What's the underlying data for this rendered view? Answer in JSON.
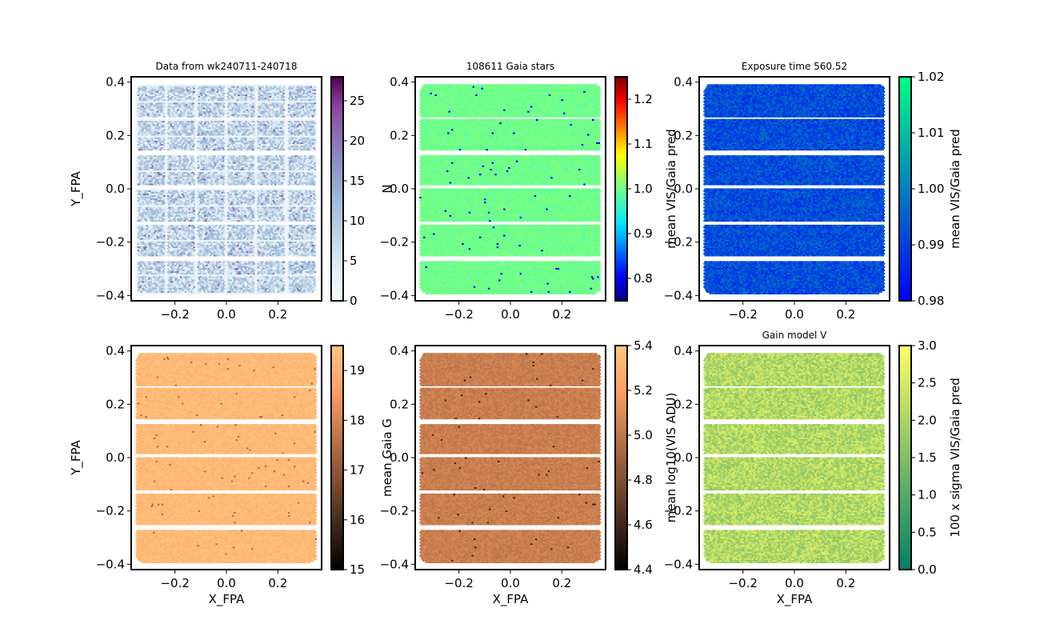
{
  "chart_data": [
    {
      "type": "heatmap",
      "title": "Data from wk240711-240718",
      "xlabel": "",
      "ylabel": "Y_FPA",
      "xlim": [
        -0.37,
        0.37
      ],
      "ylim": [
        -0.42,
        0.42
      ],
      "xticks": [
        -0.2,
        0.0,
        0.2
      ],
      "yticks": [
        -0.4,
        -0.2,
        0.0,
        0.2,
        0.4
      ],
      "xtick_labels": [
        "−0.2",
        "0.0",
        "0.2"
      ],
      "ytick_labels": [
        "−0.4",
        "−0.2",
        "0.0",
        "0.2",
        "0.4"
      ],
      "show_xtick_labels": true,
      "colorbar": {
        "label": "N",
        "range": [
          0,
          28
        ],
        "colormap": "BuPu",
        "ticks": [
          0,
          5,
          10,
          15,
          20,
          25
        ],
        "tick_labels": [
          "0",
          "5",
          "10",
          "15",
          "20",
          "25"
        ]
      },
      "field_pattern": "dense_grid",
      "value_stats": {
        "typical": 8,
        "spread": 6,
        "high_tail": 22
      }
    },
    {
      "type": "heatmap",
      "title": "108611 Gaia stars",
      "xlabel": "",
      "ylabel": "",
      "xlim": [
        -0.37,
        0.37
      ],
      "ylim": [
        -0.42,
        0.42
      ],
      "xticks": [
        -0.2,
        0.0,
        0.2
      ],
      "yticks": [
        -0.4,
        -0.2,
        0.0,
        0.2,
        0.4
      ],
      "xtick_labels": [
        "−0.2",
        "0.0",
        "0.2"
      ],
      "ytick_labels": [
        "−0.4",
        "−0.2",
        "0.0",
        "0.2",
        "0.4"
      ],
      "colorbar": {
        "label": "mean VIS/Gaia pred",
        "range": [
          0.75,
          1.25
        ],
        "colormap": "jet",
        "ticks": [
          0.8,
          0.9,
          1.0,
          1.1,
          1.2
        ],
        "tick_labels": [
          "0.8",
          "0.9",
          "1.0",
          "1.1",
          "1.2"
        ]
      },
      "field_pattern": "rows",
      "value_stats": {
        "typical": 1.0,
        "spread": 0.01,
        "outlier_low": 0.8
      }
    },
    {
      "type": "heatmap",
      "title": "Exposure time 560.52",
      "xlabel": "",
      "ylabel": "",
      "xlim": [
        -0.37,
        0.37
      ],
      "ylim": [
        -0.42,
        0.42
      ],
      "xticks": [
        -0.2,
        0.0,
        0.2
      ],
      "yticks": [
        -0.4,
        -0.2,
        0.0,
        0.2,
        0.4
      ],
      "xtick_labels": [
        "−0.2",
        "0.0",
        "0.2"
      ],
      "ytick_labels": [
        "−0.4",
        "−0.2",
        "0.0",
        "0.2",
        "0.4"
      ],
      "colorbar": {
        "label": "mean VIS/Gaia pred",
        "range": [
          0.98,
          1.02
        ],
        "colormap": "winter",
        "ticks": [
          0.98,
          0.99,
          1.0,
          1.01,
          1.02
        ],
        "tick_labels": [
          "0.98",
          "0.99",
          "1.00",
          "1.01",
          "1.02"
        ]
      },
      "field_pattern": "rows",
      "value_stats": {
        "typical": 0.992,
        "spread": 0.006
      }
    },
    {
      "type": "heatmap",
      "title": "",
      "xlabel": "X_FPA",
      "ylabel": "Y_FPA",
      "xlim": [
        -0.37,
        0.37
      ],
      "ylim": [
        -0.42,
        0.42
      ],
      "xticks": [
        -0.2,
        0.0,
        0.2
      ],
      "yticks": [
        -0.4,
        -0.2,
        0.0,
        0.2,
        0.4
      ],
      "xtick_labels": [
        "−0.2",
        "0.0",
        "0.2"
      ],
      "ytick_labels": [
        "−0.4",
        "−0.2",
        "0.0",
        "0.2",
        "0.4"
      ],
      "colorbar": {
        "label": "mean Gaia G",
        "range": [
          15,
          19.5
        ],
        "colormap": "copper",
        "ticks": [
          15,
          16,
          17,
          18,
          19
        ],
        "tick_labels": [
          "15",
          "16",
          "17",
          "18",
          "19"
        ]
      },
      "field_pattern": "rows",
      "value_stats": {
        "typical": 19.2,
        "spread": 0.2,
        "outlier_low": 17.5
      }
    },
    {
      "type": "heatmap",
      "title": "",
      "xlabel": "X_FPA",
      "ylabel": "",
      "xlim": [
        -0.37,
        0.37
      ],
      "ylim": [
        -0.42,
        0.42
      ],
      "xticks": [
        -0.2,
        0.0,
        0.2
      ],
      "yticks": [
        -0.4,
        -0.2,
        0.0,
        0.2,
        0.4
      ],
      "xtick_labels": [
        "−0.2",
        "0.0",
        "0.2"
      ],
      "ytick_labels": [
        "−0.4",
        "−0.2",
        "0.0",
        "0.2",
        "0.4"
      ],
      "colorbar": {
        "label": "mean log10(VIS ADU)",
        "range": [
          4.4,
          5.4
        ],
        "colormap": "copper",
        "ticks": [
          4.4,
          4.6,
          4.8,
          5.0,
          5.2,
          5.4
        ],
        "tick_labels": [
          "4.4",
          "4.6",
          "4.8",
          "5.0",
          "5.2",
          "5.4"
        ]
      },
      "field_pattern": "rows",
      "value_stats": {
        "typical": 5.03,
        "spread": 0.05,
        "outlier_low": 4.6
      }
    },
    {
      "type": "heatmap",
      "title": "Gain model V",
      "xlabel": "X_FPA",
      "ylabel": "",
      "xlim": [
        -0.37,
        0.37
      ],
      "ylim": [
        -0.42,
        0.42
      ],
      "xticks": [
        -0.2,
        0.0,
        0.2
      ],
      "yticks": [
        -0.4,
        -0.2,
        0.0,
        0.2,
        0.4
      ],
      "xtick_labels": [
        "−0.2",
        "0.0",
        "0.2"
      ],
      "ytick_labels": [
        "−0.4",
        "−0.2",
        "0.0",
        "0.2",
        "0.4"
      ],
      "colorbar": {
        "label": "100 x sigma VIS/Gaia pred",
        "range": [
          0,
          3
        ],
        "colormap": "summer",
        "ticks": [
          0.0,
          0.5,
          1.0,
          1.5,
          2.0,
          2.5,
          3.0
        ],
        "tick_labels": [
          "0.0",
          "0.5",
          "1.0",
          "1.5",
          "2.0",
          "2.5",
          "3.0"
        ]
      },
      "field_pattern": "rows",
      "value_stats": {
        "typical": 2.1,
        "spread": 0.5
      }
    }
  ]
}
